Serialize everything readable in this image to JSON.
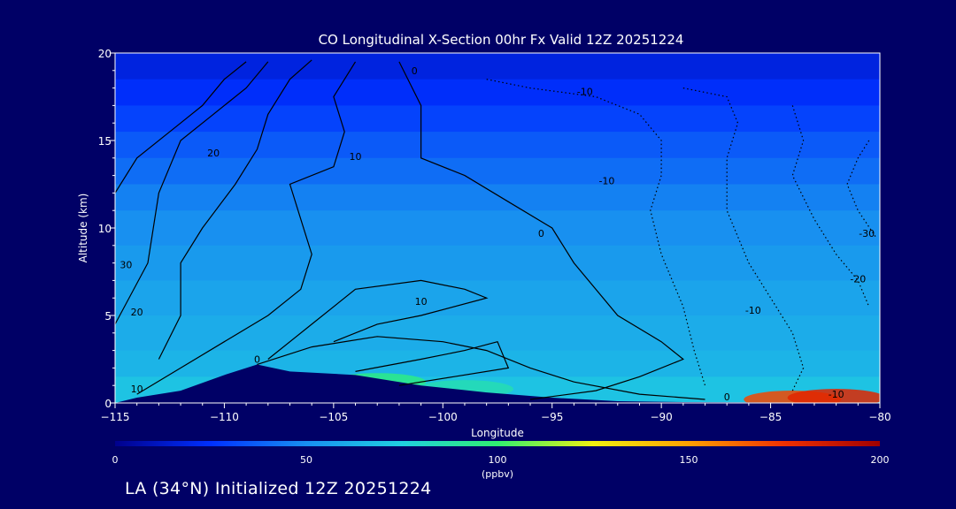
{
  "chart_data": {
    "type": "heatmap",
    "title": "CO Longitudinal X-Section 00hr  Fx Valid 12Z 20251224",
    "xlabel": "Longitude",
    "ylabel": "Altitude (km)",
    "xlim": [
      -115,
      -80
    ],
    "ylim": [
      0,
      20
    ],
    "x_ticks": [
      -115,
      -110,
      -105,
      -100,
      -95,
      -90,
      -85,
      -80
    ],
    "y_ticks": [
      0,
      5,
      10,
      15,
      20
    ],
    "colorbar": {
      "ticks": [
        0,
        50,
        100,
        150,
        200
      ],
      "range": [
        0,
        200
      ],
      "unit_label": "(ppbv)",
      "stops": [
        {
          "v": 0,
          "color": "#00008c"
        },
        {
          "v": 25,
          "color": "#0030ff"
        },
        {
          "v": 50,
          "color": "#1890f0"
        },
        {
          "v": 75,
          "color": "#20d0e0"
        },
        {
          "v": 100,
          "color": "#30f070"
        },
        {
          "v": 125,
          "color": "#f0f010"
        },
        {
          "v": 150,
          "color": "#ffa000"
        },
        {
          "v": 175,
          "color": "#f03000"
        },
        {
          "v": 200,
          "color": "#a00000"
        }
      ]
    },
    "bands": [
      {
        "z": 20.0,
        "co": 18
      },
      {
        "z": 18.5,
        "co": 24
      },
      {
        "z": 17.0,
        "co": 30
      },
      {
        "z": 15.5,
        "co": 36
      },
      {
        "z": 14.0,
        "co": 41
      },
      {
        "z": 12.5,
        "co": 46
      },
      {
        "z": 11.0,
        "co": 50
      },
      {
        "z": 9.0,
        "co": 54
      },
      {
        "z": 7.0,
        "co": 58
      },
      {
        "z": 5.0,
        "co": 61
      },
      {
        "z": 3.0,
        "co": 64
      },
      {
        "z": 1.5,
        "co": 70
      }
    ],
    "surface_hotspots": [
      {
        "lon": -103,
        "z": 1.2,
        "co": 95
      },
      {
        "lon": -99,
        "z": 0.8,
        "co": 85
      },
      {
        "lon": -84,
        "z": 0.2,
        "co": 170
      },
      {
        "lon": -82,
        "z": 0.3,
        "co": 180
      }
    ],
    "terrain": [
      [
        -115,
        0
      ],
      [
        -114,
        0.3
      ],
      [
        -112,
        0.7
      ],
      [
        -110,
        1.6
      ],
      [
        -108.5,
        2.2
      ],
      [
        -107,
        1.8
      ],
      [
        -104,
        1.6
      ],
      [
        -101,
        1.0
      ],
      [
        -98,
        0.6
      ],
      [
        -95,
        0.3
      ],
      [
        -92,
        0.1
      ],
      [
        -89,
        0.05
      ],
      [
        -80,
        0
      ]
    ],
    "contours": [
      {
        "level": "30",
        "style": "solid",
        "points": [
          [
            -115,
            12
          ],
          [
            -114,
            14
          ],
          [
            -112,
            16
          ],
          [
            -111,
            17
          ],
          [
            -110,
            18.5
          ],
          [
            -109,
            19.5
          ]
        ]
      },
      {
        "level": "20",
        "style": "solid",
        "points": [
          [
            -115,
            4.5
          ],
          [
            -113.5,
            8
          ],
          [
            -113,
            12
          ],
          [
            -112,
            15
          ],
          [
            -110.5,
            16.5
          ],
          [
            -109,
            18
          ],
          [
            -108,
            19.5
          ]
        ]
      },
      {
        "level": "20",
        "style": "solid",
        "points": [
          [
            -113,
            2.5
          ],
          [
            -112,
            5
          ],
          [
            -112,
            8
          ],
          [
            -111,
            10
          ],
          [
            -109.5,
            12.5
          ],
          [
            -108.5,
            14.5
          ],
          [
            -108,
            16.5
          ],
          [
            -107,
            18.5
          ],
          [
            -106,
            19.6
          ]
        ]
      },
      {
        "level": "10",
        "style": "solid",
        "points": [
          [
            -114,
            0.5
          ],
          [
            -112,
            2
          ],
          [
            -110,
            3.5
          ],
          [
            -108,
            5
          ],
          [
            -106.5,
            6.5
          ],
          [
            -106,
            8.5
          ],
          [
            -106.5,
            10.5
          ],
          [
            -107,
            12.5
          ],
          [
            -105,
            13.5
          ],
          [
            -104.5,
            15.5
          ],
          [
            -105,
            17.5
          ],
          [
            -104,
            19.5
          ]
        ]
      },
      {
        "level": "10",
        "style": "solid",
        "points": [
          [
            -108,
            2.5
          ],
          [
            -106,
            4.5
          ],
          [
            -104,
            6.5
          ],
          [
            -101,
            7
          ],
          [
            -99,
            6.5
          ],
          [
            -98,
            6
          ],
          [
            -101,
            5
          ],
          [
            -103,
            4.5
          ],
          [
            -105,
            3.5
          ]
        ]
      },
      {
        "level": "10",
        "style": "solid",
        "points": [
          [
            -104,
            1.8
          ],
          [
            -101,
            2.5
          ],
          [
            -99,
            3
          ],
          [
            -97.5,
            3.5
          ],
          [
            -97,
            2
          ],
          [
            -99.5,
            1.5
          ],
          [
            -102,
            1
          ]
        ]
      },
      {
        "level": "0",
        "style": "solid",
        "points": [
          [
            -108.5,
            2.2
          ],
          [
            -106,
            3.2
          ],
          [
            -103,
            3.8
          ],
          [
            -100,
            3.5
          ],
          [
            -98,
            3
          ],
          [
            -96,
            2
          ],
          [
            -94,
            1.2
          ],
          [
            -91,
            0.5
          ],
          [
            -88,
            0.2
          ]
        ]
      },
      {
        "level": "0",
        "style": "solid",
        "points": [
          [
            -102,
            19.5
          ],
          [
            -101,
            17
          ],
          [
            -101,
            14
          ],
          [
            -99,
            13
          ],
          [
            -97,
            11.5
          ],
          [
            -95,
            10
          ],
          [
            -94,
            8
          ],
          [
            -92,
            5
          ],
          [
            -90,
            3.5
          ],
          [
            -89,
            2.5
          ],
          [
            -91,
            1.5
          ],
          [
            -93,
            0.7
          ],
          [
            -96,
            0.2
          ]
        ]
      },
      {
        "level": "-10",
        "style": "dotted",
        "points": [
          [
            -98,
            18.5
          ],
          [
            -96,
            18
          ],
          [
            -93,
            17.5
          ],
          [
            -91,
            16.5
          ],
          [
            -90,
            15
          ],
          [
            -90,
            13
          ],
          [
            -90.5,
            11
          ],
          [
            -90,
            8.5
          ],
          [
            -89,
            5.5
          ],
          [
            -88.5,
            3
          ],
          [
            -88,
            1
          ]
        ]
      },
      {
        "level": "-10",
        "style": "dotted",
        "points": [
          [
            -89,
            18
          ],
          [
            -87,
            17.5
          ],
          [
            -86.5,
            16
          ],
          [
            -87,
            14
          ],
          [
            -87,
            11
          ],
          [
            -86,
            8
          ],
          [
            -85,
            6
          ],
          [
            -84,
            4
          ],
          [
            -83.5,
            2
          ],
          [
            -84,
            0.7
          ]
        ]
      },
      {
        "level": "-20",
        "style": "dotted",
        "points": [
          [
            -84,
            17
          ],
          [
            -83.5,
            15
          ],
          [
            -84,
            13
          ],
          [
            -83,
            10.5
          ],
          [
            -82,
            8.5
          ],
          [
            -81,
            7
          ],
          [
            -80.5,
            5.5
          ]
        ]
      },
      {
        "level": "-30",
        "style": "dotted",
        "points": [
          [
            -80.5,
            15
          ],
          [
            -81,
            14
          ],
          [
            -81.5,
            12.5
          ],
          [
            -81,
            11
          ],
          [
            -80.2,
            9.5
          ]
        ]
      }
    ],
    "contour_labels": [
      {
        "text": "0",
        "lon": -101.3,
        "z": 18.8
      },
      {
        "text": "-10",
        "lon": -93.5,
        "z": 17.6
      },
      {
        "text": "20",
        "lon": -110.5,
        "z": 14.1
      },
      {
        "text": "10",
        "lon": -104,
        "z": 13.9
      },
      {
        "text": "-10",
        "lon": -92.5,
        "z": 12.5
      },
      {
        "text": "0",
        "lon": -95.5,
        "z": 9.5
      },
      {
        "text": "30",
        "lon": -114.5,
        "z": 7.7
      },
      {
        "text": "20",
        "lon": -114,
        "z": 5.0
      },
      {
        "text": "10",
        "lon": -101,
        "z": 5.6
      },
      {
        "text": "-20",
        "lon": -81,
        "z": 6.9
      },
      {
        "text": "-30",
        "lon": -80.6,
        "z": 9.5
      },
      {
        "text": "-10",
        "lon": -85.8,
        "z": 5.1
      },
      {
        "text": "0",
        "lon": -108.5,
        "z": 2.3
      },
      {
        "text": "10",
        "lon": -114,
        "z": 0.6
      },
      {
        "text": "0",
        "lon": -87,
        "z": 0.15
      },
      {
        "text": "-10",
        "lon": -82,
        "z": 0.3
      }
    ]
  },
  "caption": "LA (34°N) Initialized 12Z 20251224"
}
